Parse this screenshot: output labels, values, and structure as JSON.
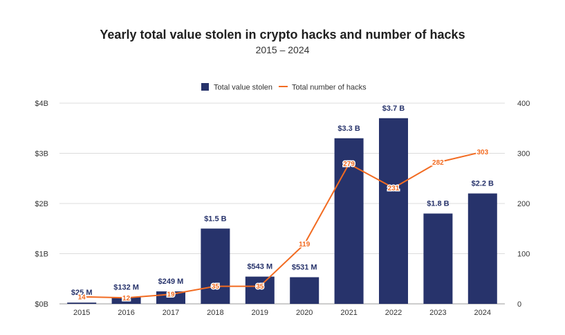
{
  "chart_data": {
    "type": "bar",
    "title": "Yearly total value stolen in crypto hacks and number of hacks",
    "subtitle": "2015 – 2024",
    "categories": [
      "2015",
      "2016",
      "2017",
      "2018",
      "2019",
      "2020",
      "2021",
      "2022",
      "2023",
      "2024"
    ],
    "series": [
      {
        "name": "Total value stolen",
        "type": "bar",
        "axis": "left",
        "color": "#27336b",
        "values": [
          0.025,
          0.132,
          0.249,
          1.5,
          0.543,
          0.531,
          3.3,
          3.7,
          1.8,
          2.2
        ],
        "labels": [
          "$25  M",
          "$132  M",
          "$249  M",
          "$1.5 B",
          "$543  M",
          "$531  M",
          "$3.3 B",
          "$3.7 B",
          "$1.8 B",
          "$2.2 B"
        ]
      },
      {
        "name": "Total number of hacks",
        "type": "line",
        "axis": "right",
        "color": "#f26b21",
        "values": [
          14,
          12,
          19,
          35,
          35,
          119,
          279,
          231,
          282,
          303
        ],
        "labels": [
          "14",
          "12",
          "19",
          "35",
          "35",
          "119",
          "279",
          "231",
          "282",
          "303"
        ]
      }
    ],
    "y_left": {
      "min": 0,
      "max": 4,
      "unit": "billion USD",
      "ticks": [
        0,
        1,
        2,
        3,
        4
      ],
      "tick_labels": [
        "$0B",
        "$1B",
        "$2B",
        "$3B",
        "$4B"
      ]
    },
    "y_right": {
      "min": 0,
      "max": 400,
      "ticks": [
        0,
        100,
        200,
        300,
        400
      ],
      "tick_labels": [
        "0",
        "100",
        "200",
        "300",
        "400"
      ]
    },
    "grid": true,
    "legend_position": "top-center",
    "xlabel": "",
    "ylabel": ""
  }
}
